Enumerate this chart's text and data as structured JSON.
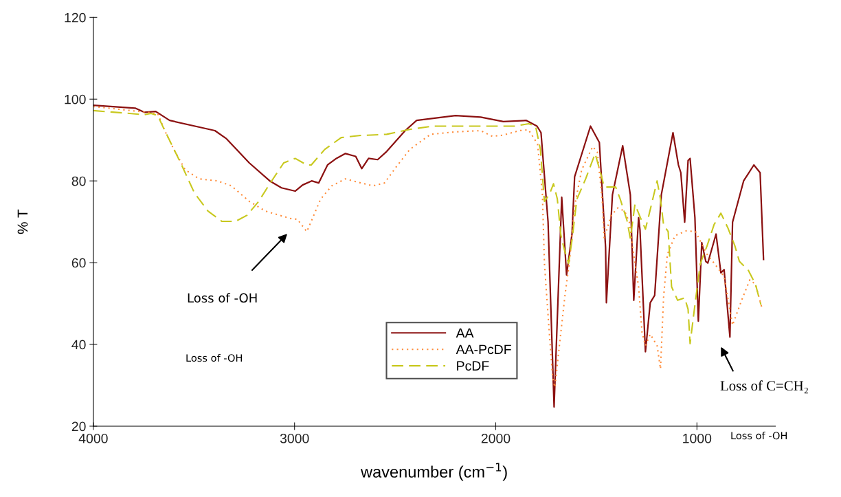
{
  "chart_data": {
    "type": "line",
    "xlabel": "wavenumber (cm$^{−1}$)",
    "ylabel": "% T",
    "xlim": [
      4000,
      610
    ],
    "ylim": [
      20,
      120
    ],
    "xticks": [
      4000,
      3000,
      2000,
      1000
    ],
    "yticks": [
      20,
      40,
      60,
      80,
      100,
      120
    ],
    "grid": false,
    "legend": "bottom",
    "marker": "none",
    "series": [
      {
        "name": "AA",
        "color": "#8b1010",
        "line_style": "solid",
        "x": [
          4000,
          3792,
          3747,
          3690,
          3621,
          3396,
          3338,
          3225,
          3123,
          3065,
          2997,
          2960,
          2915,
          2880,
          2836,
          2792,
          2747,
          2696,
          2666,
          2632,
          2587,
          2542,
          2450,
          2393,
          2200,
          2075,
          1962,
          1848,
          1795,
          1775,
          1740,
          1710,
          1672,
          1648,
          1621,
          1608,
          1529,
          1485,
          1454,
          1450,
          1420,
          1369,
          1331,
          1314,
          1290,
          1283,
          1256,
          1232,
          1210,
          1177,
          1119,
          1092,
          1080,
          1061,
          1044,
          1034,
          1010,
          993,
          976,
          956,
          946,
          905,
          881,
          865,
          836,
          823,
          768,
          717,
          686,
          669
        ],
        "values": [
          98.5,
          97.8,
          96.8,
          97,
          94.8,
          92.3,
          90.3,
          84.4,
          80,
          78.3,
          77.5,
          79,
          80,
          79.5,
          83.9,
          85.5,
          86.7,
          86,
          83,
          85.5,
          85.2,
          87.2,
          92.3,
          94.8,
          96,
          95.6,
          94.5,
          94.8,
          93.4,
          91.8,
          70,
          24.7,
          76,
          57,
          67,
          81,
          93.4,
          89.4,
          63.7,
          50.2,
          76.6,
          88.6,
          76.6,
          50.8,
          71,
          68,
          38.2,
          50.2,
          52,
          76.6,
          91.8,
          83.9,
          82,
          69.9,
          85,
          85.5,
          71,
          45.7,
          64.9,
          60.3,
          59.9,
          67,
          57.5,
          58.3,
          41.8,
          69.9,
          80,
          83.9,
          82,
          60.8
        ]
      },
      {
        "name": "AA-PcDF",
        "color": "#ff8c3a",
        "line_style": "dotted",
        "x": [
          4000,
          3680,
          3645,
          3600,
          3543,
          3474,
          3383,
          3314,
          3225,
          3144,
          3020,
          2986,
          2939,
          2911,
          2871,
          2815,
          2747,
          2679,
          2610,
          2553,
          2495,
          2427,
          2324,
          2200,
          2075,
          2017,
          1962,
          1883,
          1837,
          1792,
          1768,
          1758,
          1734,
          1717,
          1706,
          1683,
          1655,
          1634,
          1608,
          1573,
          1518,
          1495,
          1471,
          1461,
          1427,
          1393,
          1359,
          1336,
          1318,
          1290,
          1273,
          1256,
          1232,
          1198,
          1181,
          1166,
          1147,
          1109,
          1052,
          1007,
          949,
          904,
          865,
          823,
          778,
          737,
          709,
          675
        ],
        "values": [
          98.2,
          96.5,
          92.3,
          87.7,
          82.7,
          80.5,
          80,
          78.8,
          75,
          72.6,
          70.8,
          70.6,
          67.6,
          70.8,
          75.5,
          78.8,
          80.5,
          79.6,
          78.8,
          79.5,
          83.4,
          87.7,
          91.4,
          92,
          92.3,
          90.9,
          91.2,
          92.3,
          92.5,
          89,
          76.6,
          59.8,
          43,
          31.8,
          29.5,
          40,
          52.4,
          60,
          73.8,
          82.7,
          88.4,
          87,
          75.5,
          65.9,
          71.5,
          73.4,
          72.6,
          69.9,
          63.2,
          54.1,
          43,
          39.7,
          42.5,
          39.7,
          34,
          51.4,
          62,
          66.6,
          67.8,
          67.6,
          62,
          59.2,
          56.6,
          44.7,
          50.8,
          55.8,
          54.7,
          48.6
        ]
      },
      {
        "name": "PcDF",
        "color": "#c8c81e",
        "line_style": "dashed",
        "x": [
          4000,
          3845,
          3747,
          3713,
          3680,
          3645,
          3566,
          3498,
          3430,
          3361,
          3293,
          3236,
          3178,
          3123,
          3054,
          2997,
          2939,
          2917,
          2850,
          2768,
          2679,
          2542,
          2427,
          2314,
          2075,
          1905,
          1836,
          1802,
          1778,
          1758,
          1734,
          1713,
          1694,
          1676,
          1659,
          1638,
          1621,
          1597,
          1553,
          1506,
          1471,
          1461,
          1404,
          1381,
          1348,
          1331,
          1308,
          1281,
          1256,
          1228,
          1198,
          1181,
          1166,
          1143,
          1126,
          1096,
          1061,
          1044,
          1034,
          1010,
          983,
          949,
          915,
          881,
          847,
          812,
          789,
          744,
          709,
          682
        ],
        "values": [
          97.2,
          96.6,
          96.2,
          96.5,
          96,
          92.3,
          84.4,
          77.1,
          72.6,
          70.1,
          70.1,
          71.6,
          75,
          79.3,
          84.4,
          85.5,
          83.9,
          83.9,
          87.7,
          90.6,
          91.1,
          91.4,
          92.6,
          93.4,
          93.4,
          93.4,
          94,
          93.4,
          87.7,
          75,
          76.6,
          79.3,
          75.6,
          66.6,
          63.2,
          59.8,
          65.5,
          75.5,
          80.5,
          86.7,
          80.5,
          78.5,
          78.5,
          75.5,
          70.4,
          65.9,
          74.3,
          71,
          68.2,
          73.8,
          80,
          75.5,
          69.3,
          67.6,
          54.1,
          50.8,
          51.4,
          48.6,
          40.2,
          49.7,
          59.8,
          64.2,
          69.3,
          72.1,
          68.6,
          64.2,
          60.3,
          58.1,
          54.7,
          49.7
        ]
      }
    ],
    "annotations": [
      "Loss of -OH",
      "Loss of -OH",
      "Loss of C=CH₂",
      "Loss of -OH"
    ]
  }
}
